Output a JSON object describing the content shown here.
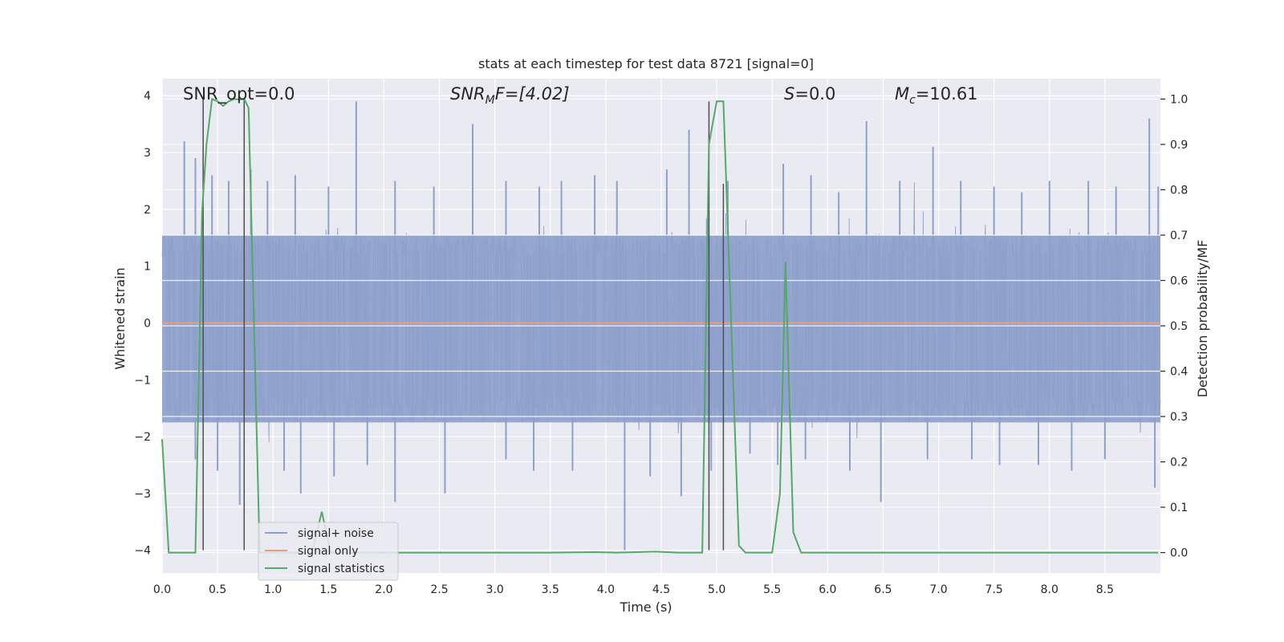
{
  "chart_data": {
    "type": "line",
    "title": "stats at each timestep for test data 8721 [signal=0]",
    "xlabel": "Time (s)",
    "ylabel_left": "Whitened strain",
    "ylabel_right": "Detection probability/MF",
    "xlim": [
      0.0,
      9.0
    ],
    "ylim_left": [
      -4.4,
      4.3
    ],
    "ylim_right": [
      -0.045,
      1.045
    ],
    "x_ticks": [
      0.0,
      0.5,
      1.0,
      1.5,
      2.0,
      2.5,
      3.0,
      3.5,
      4.0,
      4.5,
      5.0,
      5.5,
      6.0,
      6.5,
      7.0,
      7.5,
      8.0,
      8.5
    ],
    "x_tick_labels": [
      "0.0",
      "0.5",
      "1.0",
      "1.5",
      "2.0",
      "2.5",
      "3.0",
      "3.5",
      "4.0",
      "4.5",
      "5.0",
      "5.5",
      "6.0",
      "6.5",
      "7.0",
      "7.5",
      "8.0",
      "8.5"
    ],
    "y_left_ticks": [
      -4,
      -3,
      -2,
      -1,
      0,
      1,
      2,
      3,
      4
    ],
    "y_left_tick_labels": [
      "−4",
      "−3",
      "−2",
      "−1",
      "0",
      "1",
      "2",
      "3",
      "4"
    ],
    "y_right_ticks": [
      0.0,
      0.1,
      0.2,
      0.3,
      0.4,
      0.5,
      0.6,
      0.7,
      0.8,
      0.9,
      1.0
    ],
    "y_right_tick_labels": [
      "0.0",
      "0.1",
      "0.2",
      "0.3",
      "0.4",
      "0.5",
      "0.6",
      "0.7",
      "0.8",
      "0.9",
      "1.0"
    ],
    "grid": true,
    "legend_position": "lower-left",
    "annotations": {
      "snr_opt": "SNR_opt=0.0",
      "snr_mf_main": "SNR",
      "snr_mf_sub": "M",
      "snr_mf_tail": "F=[4.02]",
      "s_main": "S",
      "s_tail": "=0.0",
      "mc_main": "M",
      "mc_sub": "c",
      "mc_tail": "=10.61"
    },
    "series": [
      {
        "name": "signal+ noise",
        "color": "#8da0cb",
        "axis": "left",
        "kind": "noise",
        "core_band": [
          -1.75,
          1.55
        ],
        "peaks_up": [
          [
            0.2,
            3.2
          ],
          [
            0.3,
            2.9
          ],
          [
            0.45,
            2.6
          ],
          [
            0.6,
            2.5
          ],
          [
            0.8,
            2.7
          ],
          [
            0.95,
            2.5
          ],
          [
            1.2,
            2.6
          ],
          [
            1.5,
            2.4
          ],
          [
            1.75,
            3.9
          ],
          [
            2.1,
            2.5
          ],
          [
            2.45,
            2.4
          ],
          [
            2.8,
            3.5
          ],
          [
            3.1,
            2.5
          ],
          [
            3.4,
            2.4
          ],
          [
            3.6,
            2.5
          ],
          [
            3.9,
            2.6
          ],
          [
            4.1,
            2.5
          ],
          [
            4.55,
            2.7
          ],
          [
            4.75,
            3.4
          ],
          [
            5.1,
            2.5
          ],
          [
            5.6,
            2.8
          ],
          [
            5.85,
            2.6
          ],
          [
            6.1,
            2.3
          ],
          [
            6.35,
            3.55
          ],
          [
            6.65,
            2.5
          ],
          [
            6.95,
            3.1
          ],
          [
            7.2,
            2.5
          ],
          [
            7.5,
            2.4
          ],
          [
            7.75,
            2.3
          ],
          [
            8.0,
            2.5
          ],
          [
            8.35,
            2.5
          ],
          [
            8.6,
            2.4
          ],
          [
            8.9,
            3.6
          ],
          [
            8.98,
            2.4
          ]
        ],
        "peaks_down": [
          [
            0.3,
            -2.4
          ],
          [
            0.5,
            -2.6
          ],
          [
            0.7,
            -3.2
          ],
          [
            1.1,
            -2.6
          ],
          [
            1.25,
            -3.0
          ],
          [
            1.55,
            -2.7
          ],
          [
            1.85,
            -2.5
          ],
          [
            2.1,
            -3.15
          ],
          [
            2.55,
            -3.0
          ],
          [
            3.1,
            -2.4
          ],
          [
            3.35,
            -2.6
          ],
          [
            3.7,
            -2.6
          ],
          [
            4.17,
            -4.0
          ],
          [
            4.4,
            -2.7
          ],
          [
            4.68,
            -3.05
          ],
          [
            4.95,
            -2.6
          ],
          [
            5.3,
            -2.3
          ],
          [
            5.55,
            -2.5
          ],
          [
            5.8,
            -2.4
          ],
          [
            6.2,
            -2.6
          ],
          [
            6.48,
            -3.15
          ],
          [
            6.9,
            -2.4
          ],
          [
            7.3,
            -2.4
          ],
          [
            7.55,
            -2.5
          ],
          [
            7.9,
            -2.5
          ],
          [
            8.2,
            -2.6
          ],
          [
            8.5,
            -2.4
          ],
          [
            8.95,
            -2.9
          ]
        ]
      },
      {
        "name": "signal only",
        "color": "#e5a07a",
        "axis": "left",
        "kind": "flat",
        "value": 0.0
      },
      {
        "name": "signal statistics",
        "color": "#55a868",
        "axis": "right",
        "kind": "line",
        "x": [
          0.0,
          0.06,
          0.15,
          0.3,
          0.36,
          0.4,
          0.45,
          0.5,
          0.55,
          0.6,
          0.65,
          0.7,
          0.74,
          0.78,
          0.88,
          1.0,
          1.35,
          1.44,
          1.52,
          1.7,
          3.5,
          3.9,
          4.1,
          4.45,
          4.65,
          4.87,
          4.93,
          5.0,
          5.06,
          5.1,
          5.2,
          5.26,
          5.35,
          5.5,
          5.57,
          5.62,
          5.69,
          5.76,
          6.0,
          8.98
        ],
        "y": [
          0.25,
          0.0,
          0.0,
          0.0,
          0.75,
          0.9,
          1.0,
          0.995,
          0.985,
          0.995,
          1.0,
          0.999,
          1.0,
          0.98,
          0.0,
          0.0,
          0.0,
          0.09,
          0.0,
          0.0,
          0.0,
          0.001,
          0.0,
          0.002,
          0.0,
          0.0,
          0.9,
          0.995,
          0.995,
          0.72,
          0.015,
          0.0,
          0.0,
          0.0,
          0.13,
          0.64,
          0.045,
          0.0,
          0.0,
          0.0
        ]
      }
    ],
    "vertical_markers": [
      {
        "x": 0.37,
        "from_y": -4.0,
        "to_y": 3.95
      },
      {
        "x": 0.74,
        "from_y": -4.0,
        "to_y": 3.95
      },
      {
        "x": 4.93,
        "from_y": -4.0,
        "to_y": 3.9
      },
      {
        "x": 5.06,
        "from_y": -4.0,
        "to_y": 2.45
      }
    ],
    "colors": {
      "axes_bg": "#eaeaf2",
      "grid": "#ffffff",
      "marker": "#4d4d4d",
      "legend_bg": "#eaeaf2",
      "legend_border": "#cccccc"
    }
  }
}
